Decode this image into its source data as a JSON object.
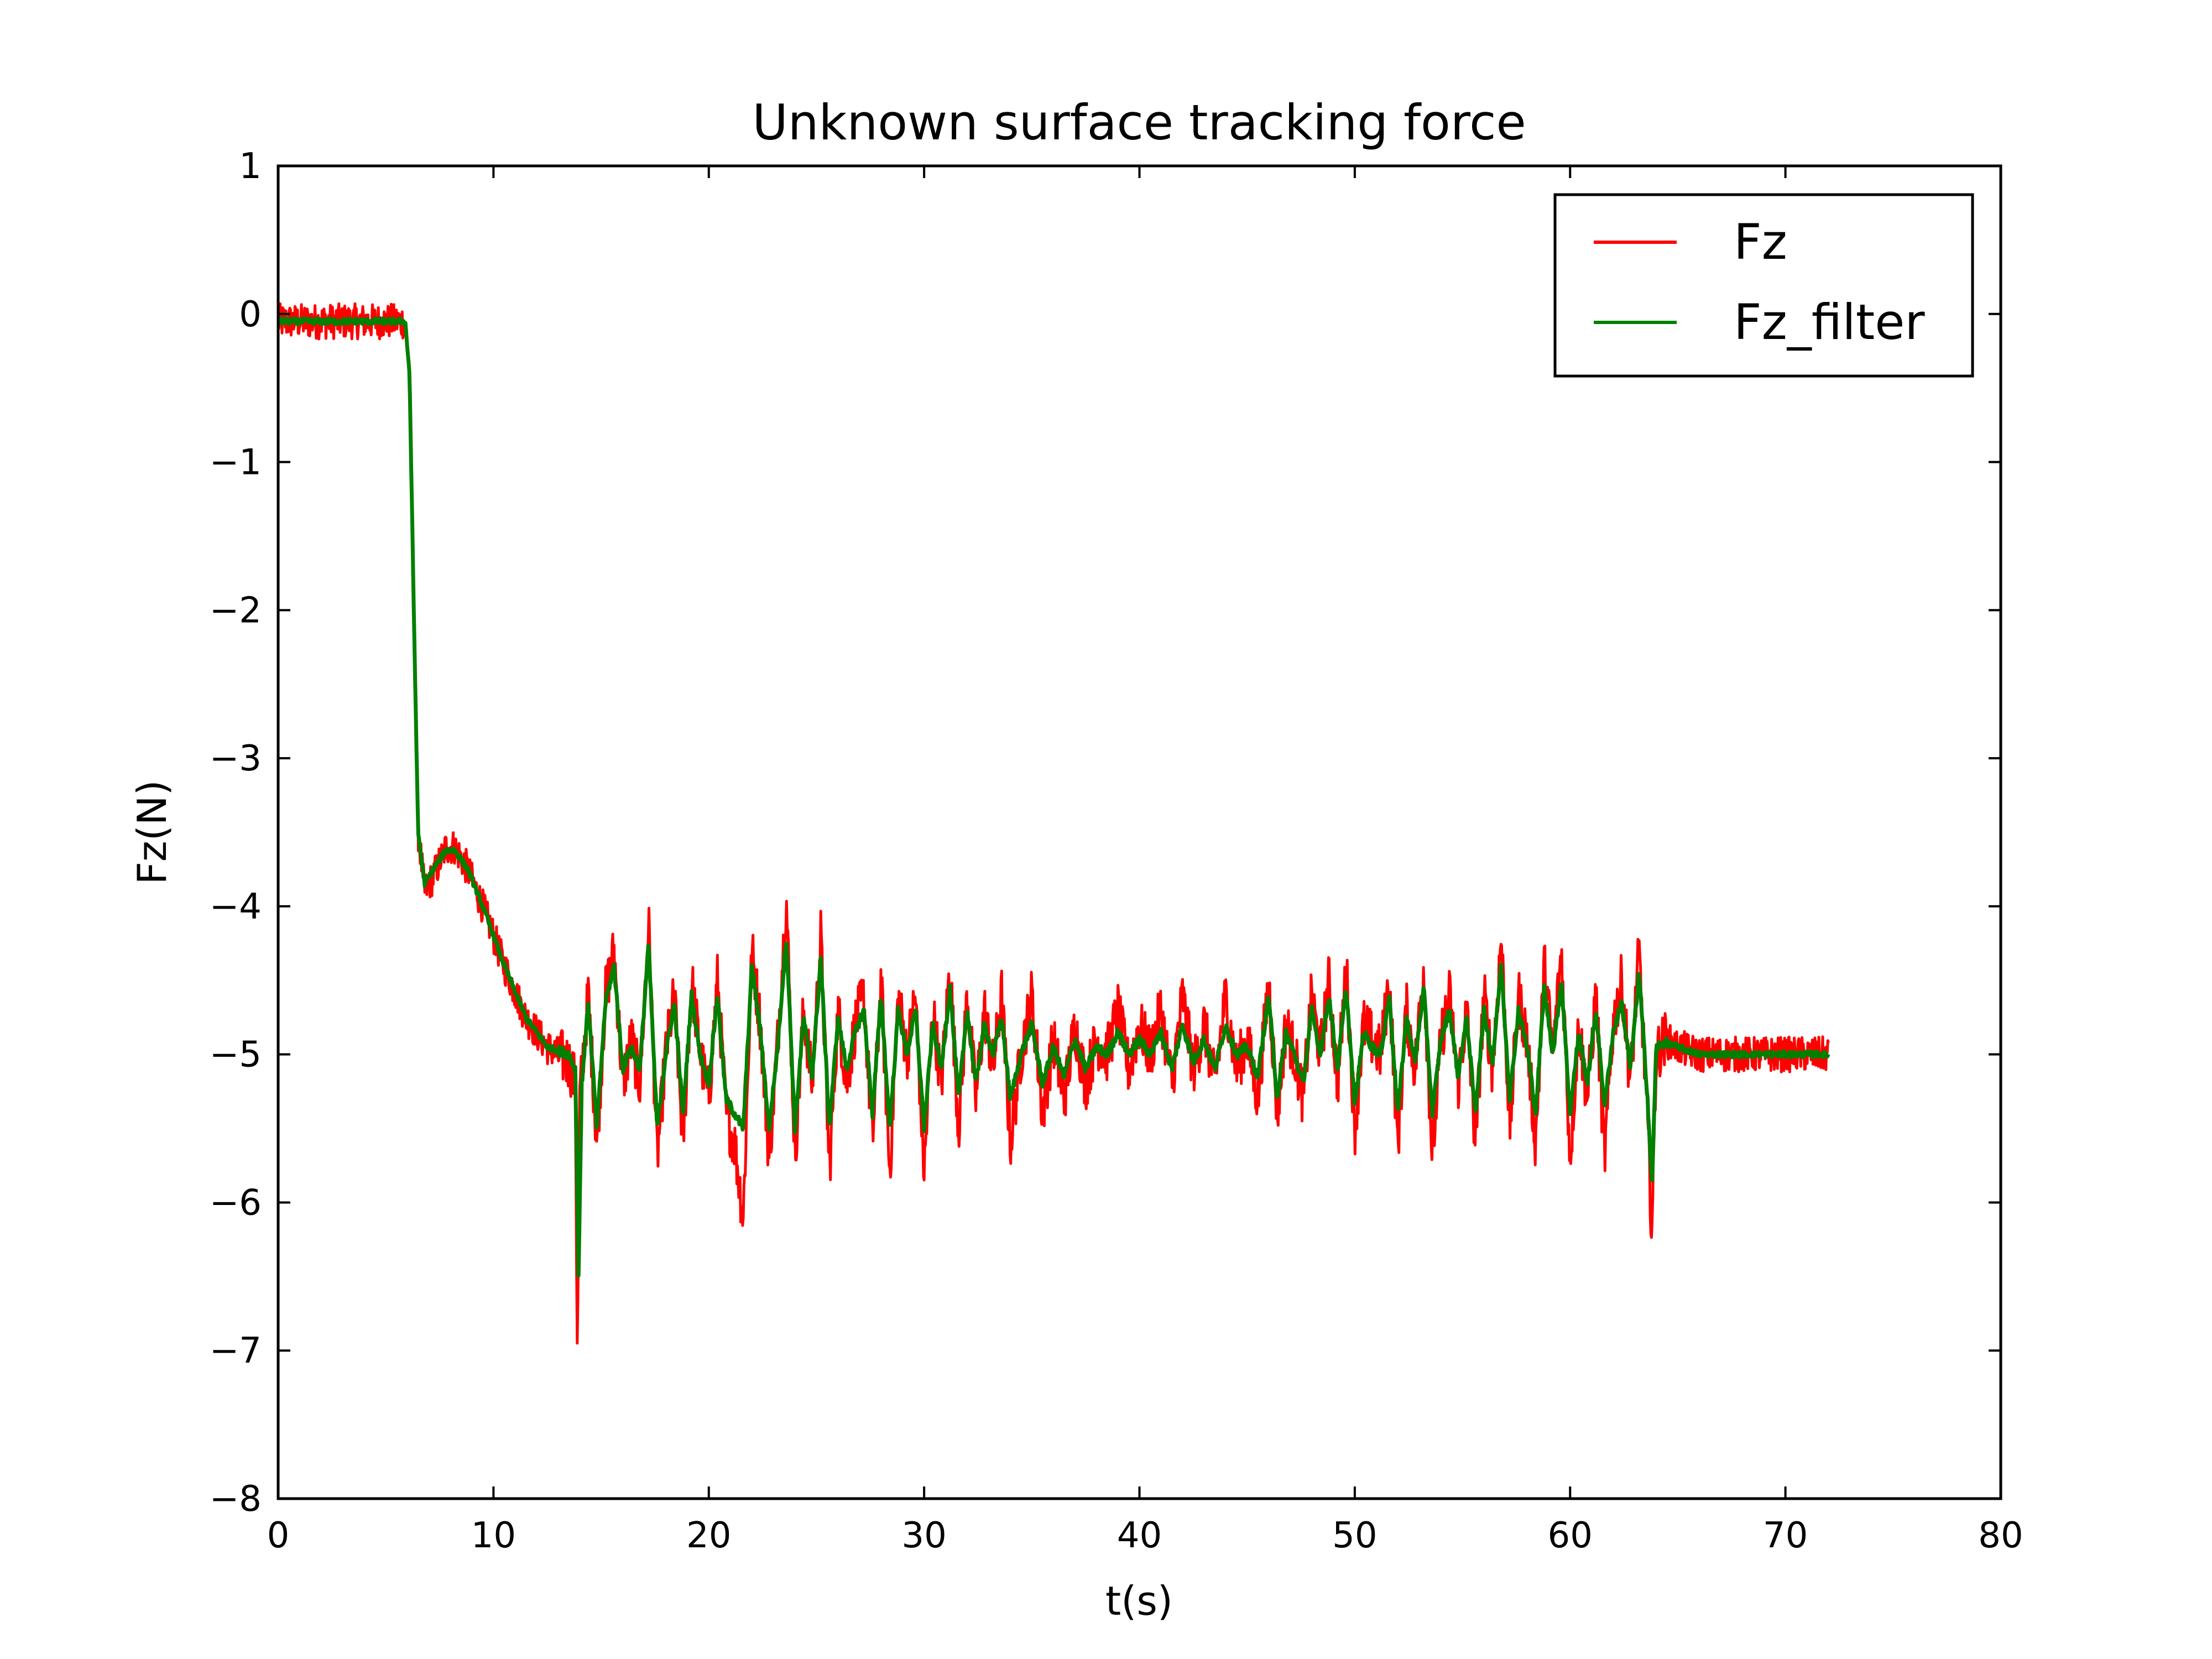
{
  "chart_data": {
    "type": "line",
    "title": "Unknown surface tracking force",
    "xlabel": "t(s)",
    "ylabel": "Fz(N)",
    "xlim": [
      0,
      80
    ],
    "ylim": [
      -8,
      1
    ],
    "xticks": [
      0,
      10,
      20,
      30,
      40,
      50,
      60,
      70,
      80
    ],
    "yticks": [
      1,
      0,
      -1,
      -2,
      -3,
      -4,
      -5,
      -6,
      -7,
      -8
    ],
    "xtick_labels": [
      "0",
      "10",
      "20",
      "30",
      "40",
      "50",
      "60",
      "70",
      "80"
    ],
    "ytick_labels": [
      "1",
      "0",
      "−1",
      "−2",
      "−3",
      "−4",
      "−5",
      "−6",
      "−7",
      "−8"
    ],
    "grid": false,
    "legend_position": "top-right",
    "series": [
      {
        "name": "Fz",
        "color": "#ff0000",
        "noise": 0.12,
        "x": [
          0,
          2,
          4,
          5.9,
          6.1,
          6.3,
          6.5,
          6.8,
          7.2,
          7.8,
          8.2,
          8.8,
          9.5,
          10.5,
          11.5,
          12.5,
          13.5,
          13.8,
          13.9,
          14.0,
          14.4,
          14.8,
          15.2,
          15.6,
          16.0,
          16.4,
          16.8,
          17.2,
          17.6,
          18.0,
          18.4,
          18.8,
          19.2,
          19.6,
          20.0,
          20.4,
          20.8,
          21.2,
          21.6,
          22.0,
          22.4,
          22.8,
          23.2,
          23.6,
          24.0,
          24.4,
          24.8,
          25.2,
          25.6,
          26.0,
          26.4,
          26.8,
          27.2,
          27.6,
          28.0,
          28.4,
          28.8,
          29.2,
          29.6,
          30.0,
          30.4,
          30.8,
          31.2,
          31.6,
          32.0,
          32.4,
          32.8,
          33.2,
          33.6,
          34.0,
          34.5,
          35.0,
          35.5,
          36.0,
          36.5,
          37.0,
          37.5,
          38.0,
          38.5,
          39.0,
          39.5,
          40.0,
          40.5,
          41.0,
          41.5,
          42.0,
          42.5,
          43.0,
          43.5,
          44.0,
          44.5,
          45.0,
          45.5,
          46.0,
          46.4,
          46.8,
          47.2,
          47.6,
          48.0,
          48.4,
          48.8,
          49.2,
          49.6,
          50.0,
          50.4,
          50.8,
          51.2,
          51.6,
          52.0,
          52.4,
          52.8,
          53.2,
          53.6,
          54.0,
          54.4,
          54.8,
          55.2,
          55.6,
          56.0,
          56.4,
          56.8,
          57.2,
          57.6,
          58.0,
          58.4,
          58.8,
          59.2,
          59.6,
          60.0,
          60.4,
          60.8,
          61.2,
          61.6,
          62.0,
          62.4,
          62.8,
          63.2,
          63.6,
          63.8,
          64.0,
          64.4,
          65.0,
          66.0,
          67.0,
          68.0,
          69.0,
          70.0,
          71.0,
          72.0
        ],
        "y": [
          -0.05,
          -0.05,
          -0.05,
          -0.05,
          -0.4,
          -2.0,
          -3.5,
          -3.9,
          -3.8,
          -3.6,
          -3.6,
          -3.75,
          -4.0,
          -4.4,
          -4.75,
          -4.95,
          -5.05,
          -5.2,
          -7.1,
          -5.3,
          -4.6,
          -5.6,
          -4.6,
          -4.3,
          -5.2,
          -4.9,
          -5.2,
          -4.1,
          -5.7,
          -5.0,
          -4.6,
          -5.6,
          -4.5,
          -5.0,
          -5.3,
          -4.5,
          -5.4,
          -5.6,
          -6.1,
          -4.3,
          -4.8,
          -5.7,
          -4.9,
          -3.95,
          -5.7,
          -4.7,
          -5.2,
          -4.2,
          -5.8,
          -4.7,
          -5.2,
          -4.8,
          -4.6,
          -5.6,
          -4.5,
          -5.8,
          -4.6,
          -5.0,
          -4.6,
          -5.8,
          -4.7,
          -5.2,
          -4.4,
          -5.5,
          -4.6,
          -5.3,
          -4.7,
          -5.1,
          -4.6,
          -5.6,
          -5.0,
          -4.6,
          -5.4,
          -4.9,
          -5.3,
          -4.8,
          -5.2,
          -4.9,
          -5.0,
          -4.7,
          -5.1,
          -4.8,
          -5.0,
          -4.7,
          -5.2,
          -4.6,
          -5.1,
          -4.8,
          -5.2,
          -4.6,
          -5.1,
          -4.9,
          -5.3,
          -4.5,
          -5.4,
          -4.8,
          -5.0,
          -5.3,
          -4.6,
          -5.0,
          -4.5,
          -5.2,
          -4.4,
          -5.5,
          -4.8,
          -4.9,
          -5.0,
          -4.5,
          -5.6,
          -4.7,
          -5.1,
          -4.4,
          -5.7,
          -4.9,
          -4.6,
          -5.2,
          -4.7,
          -5.6,
          -4.6,
          -5.1,
          -4.2,
          -5.5,
          -4.6,
          -4.9,
          -5.6,
          -4.4,
          -5.0,
          -4.3,
          -5.7,
          -4.8,
          -5.3,
          -4.6,
          -5.7,
          -4.8,
          -4.5,
          -5.2,
          -4.3,
          -5.5,
          -6.2,
          -5.0,
          -4.9,
          -4.95,
          -5.0,
          -5.0,
          -5.0,
          -5.0,
          -5.0,
          -5.0,
          -5.0
        ]
      },
      {
        "name": "Fz_filter",
        "color": "#008000",
        "noise": 0.02,
        "x": [
          0,
          2,
          4,
          5.9,
          6.1,
          6.3,
          6.5,
          6.8,
          7.2,
          7.8,
          8.2,
          8.8,
          9.5,
          10.5,
          11.5,
          12.5,
          13.5,
          13.8,
          13.95,
          14.1,
          14.4,
          14.8,
          15.2,
          15.6,
          16.0,
          16.4,
          16.8,
          17.2,
          17.6,
          18.0,
          18.4,
          18.8,
          19.2,
          19.6,
          20.0,
          20.4,
          20.8,
          21.2,
          21.6,
          22.0,
          22.4,
          22.8,
          23.2,
          23.6,
          24.0,
          24.4,
          24.8,
          25.2,
          25.6,
          26.0,
          26.4,
          26.8,
          27.2,
          27.6,
          28.0,
          28.4,
          28.8,
          29.2,
          29.6,
          30.0,
          30.4,
          30.8,
          31.2,
          31.6,
          32.0,
          32.4,
          32.8,
          33.2,
          33.6,
          34.0,
          34.5,
          35.0,
          35.5,
          36.0,
          36.5,
          37.0,
          37.5,
          38.0,
          38.5,
          39.0,
          39.5,
          40.0,
          40.5,
          41.0,
          41.5,
          42.0,
          42.5,
          43.0,
          43.5,
          44.0,
          44.5,
          45.0,
          45.5,
          46.0,
          46.4,
          46.8,
          47.2,
          47.6,
          48.0,
          48.4,
          48.8,
          49.2,
          49.6,
          50.0,
          50.4,
          50.8,
          51.2,
          51.6,
          52.0,
          52.4,
          52.8,
          53.2,
          53.6,
          54.0,
          54.4,
          54.8,
          55.2,
          55.6,
          56.0,
          56.4,
          56.8,
          57.2,
          57.6,
          58.0,
          58.4,
          58.8,
          59.2,
          59.6,
          60.0,
          60.4,
          60.8,
          61.2,
          61.6,
          62.0,
          62.4,
          62.8,
          63.2,
          63.6,
          63.8,
          64.0,
          64.4,
          65.0,
          66.0,
          67.0,
          68.0,
          69.0,
          70.0,
          71.0,
          72.0
        ],
        "y": [
          -0.05,
          -0.05,
          -0.05,
          -0.05,
          -0.4,
          -2.0,
          -3.5,
          -3.85,
          -3.75,
          -3.62,
          -3.62,
          -3.75,
          -4.0,
          -4.4,
          -4.75,
          -4.95,
          -5.0,
          -5.1,
          -6.5,
          -5.2,
          -4.65,
          -5.5,
          -4.65,
          -4.4,
          -5.1,
          -4.95,
          -5.1,
          -4.25,
          -5.5,
          -5.0,
          -4.65,
          -5.4,
          -4.6,
          -5.0,
          -5.2,
          -4.6,
          -5.3,
          -5.4,
          -5.5,
          -4.4,
          -4.85,
          -5.5,
          -4.95,
          -4.2,
          -5.5,
          -4.75,
          -5.15,
          -4.35,
          -5.5,
          -4.75,
          -5.1,
          -4.85,
          -4.7,
          -5.4,
          -4.6,
          -5.5,
          -4.7,
          -5.0,
          -4.7,
          -5.5,
          -4.8,
          -5.1,
          -4.55,
          -5.3,
          -4.7,
          -5.2,
          -4.8,
          -5.0,
          -4.75,
          -5.3,
          -5.0,
          -4.8,
          -5.2,
          -4.95,
          -5.15,
          -4.9,
          -5.1,
          -4.95,
          -5.0,
          -4.85,
          -5.0,
          -4.9,
          -5.0,
          -4.85,
          -5.1,
          -4.8,
          -5.05,
          -4.9,
          -5.1,
          -4.8,
          -5.0,
          -4.95,
          -5.15,
          -4.6,
          -5.3,
          -4.85,
          -5.0,
          -5.2,
          -4.7,
          -5.0,
          -4.6,
          -5.1,
          -4.55,
          -5.35,
          -4.85,
          -4.95,
          -5.0,
          -4.6,
          -5.4,
          -4.75,
          -5.05,
          -4.55,
          -5.4,
          -4.9,
          -4.7,
          -5.15,
          -4.75,
          -5.4,
          -4.7,
          -5.05,
          -4.4,
          -5.3,
          -4.7,
          -4.95,
          -5.4,
          -4.55,
          -5.0,
          -4.5,
          -5.4,
          -4.85,
          -5.2,
          -4.7,
          -5.35,
          -4.85,
          -4.65,
          -5.1,
          -4.45,
          -5.3,
          -5.9,
          -4.95,
          -4.92,
          -4.95,
          -5.0,
          -5.0,
          -5.0,
          -5.0,
          -5.0,
          -5.0,
          -5.0
        ]
      }
    ]
  }
}
